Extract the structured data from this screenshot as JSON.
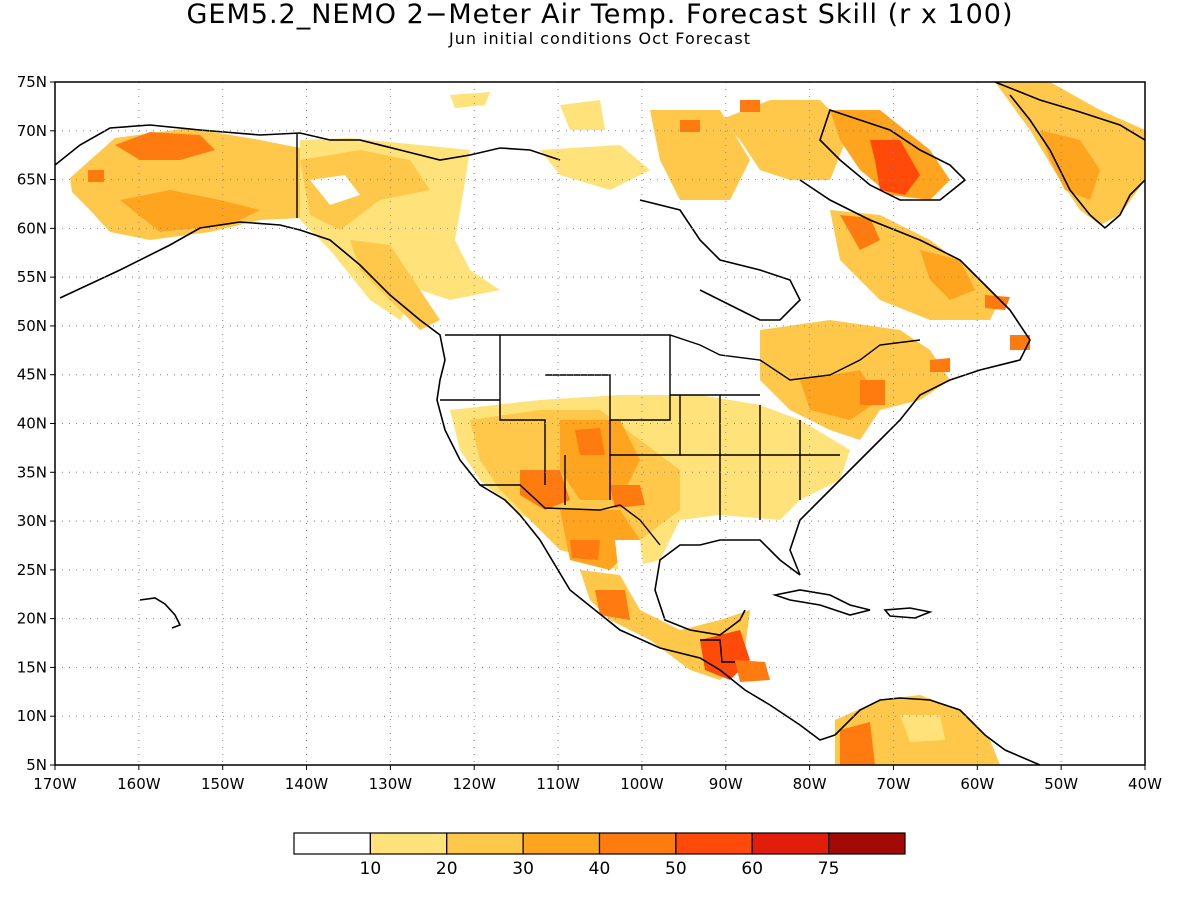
{
  "title": "GEM5.2_NEMO 2−Meter Air Temp. Forecast Skill (r x 100)",
  "subtitle": "Jun initial conditions  Oct Forecast",
  "map": {
    "lat_labels": [
      "75N",
      "70N",
      "65N",
      "60N",
      "55N",
      "50N",
      "45N",
      "40N",
      "35N",
      "30N",
      "25N",
      "20N",
      "15N",
      "10N",
      "5N"
    ],
    "lon_labels": [
      "170W",
      "160W",
      "150W",
      "140W",
      "130W",
      "120W",
      "110W",
      "100W",
      "90W",
      "80W",
      "70W",
      "60W",
      "50W",
      "40W"
    ],
    "grid": true,
    "lat_range": [
      5,
      75
    ],
    "lon_range": [
      -170,
      -40
    ]
  },
  "legend": {
    "labels": [
      "10",
      "20",
      "30",
      "40",
      "50",
      "60",
      "75"
    ],
    "colors": [
      "#ffffff",
      "#ffe37a",
      "#ffc84a",
      "#ffa41f",
      "#ff7a0f",
      "#ff4a0a",
      "#e01e0a",
      "#a10a05"
    ]
  }
}
